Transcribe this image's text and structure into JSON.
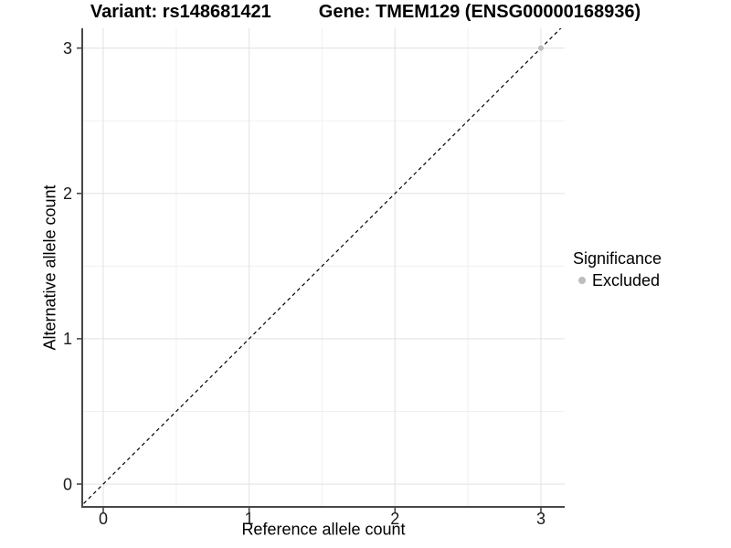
{
  "header": {
    "variant_title": "Variant: rs148681421",
    "gene_title": "Gene: TMEM129 (ENSG00000168936)"
  },
  "chart_data": {
    "type": "scatter",
    "titles": {
      "left": "Variant: rs148681421",
      "right": "Gene: TMEM129 (ENSG00000168936)"
    },
    "xlabel": "Reference allele count",
    "ylabel": "Alternative allele count",
    "xticks": [
      0,
      1,
      2,
      3
    ],
    "yticks": [
      0,
      1,
      2,
      3
    ],
    "minor_ticks": [
      0.5,
      1.5,
      2.5
    ],
    "xlim": [
      -0.144,
      3.163
    ],
    "ylim": [
      -0.157,
      3.136
    ],
    "grid": {
      "major": true,
      "minor": true
    },
    "reference_line": {
      "type": "identity",
      "equation": "y = x",
      "style": "dashed",
      "color": "#000000"
    },
    "series": [
      {
        "name": "Excluded",
        "color": "#bdbdbd",
        "points": [
          {
            "x": 3,
            "y": 3
          }
        ]
      }
    ],
    "legend": {
      "title": "Significance",
      "position": "right",
      "items": [
        {
          "label": "Excluded",
          "color": "#bdbdbd"
        }
      ]
    }
  },
  "colors": {
    "background": "#ffffff",
    "grid_major": "#e4e4e4",
    "grid_minor": "#f1f1f1",
    "axis": "#474747",
    "tick_text": "#1a1a1a",
    "title_text": "#000000",
    "point": "#bdbdbd"
  }
}
